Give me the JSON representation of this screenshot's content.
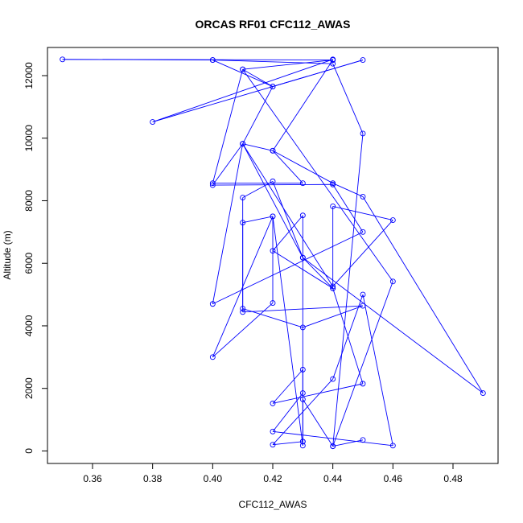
{
  "chart_data": {
    "type": "line",
    "title": "ORCAS RF01 CFC112_AWAS",
    "xlabel": "CFC112_AWAS",
    "ylabel": "Altitude (m)",
    "xlim": [
      0.345,
      0.495
    ],
    "ylim": [
      -400,
      12900
    ],
    "x_ticks": [
      0.36,
      0.38,
      0.4,
      0.42,
      0.44,
      0.46,
      0.48
    ],
    "x_tick_labels": [
      "0.36",
      "0.38",
      "0.40",
      "0.42",
      "0.44",
      "0.46",
      "0.48"
    ],
    "y_ticks": [
      0,
      2000,
      4000,
      6000,
      8000,
      10000,
      12000
    ],
    "y_tick_labels": [
      "0",
      "2000",
      "4000",
      "6000",
      "8000",
      "10000",
      "12000"
    ],
    "grid": false,
    "legend": "none",
    "line_color": "#0000ff",
    "marker": "open-circle",
    "series": [
      {
        "x": [
          0.45,
          0.44,
          0.43,
          0.43,
          0.42,
          0.44,
          0.45,
          0.46,
          0.42,
          0.43,
          0.43,
          0.42,
          0.45,
          0.44,
          0.42,
          0.43,
          0.43,
          0.43,
          0.42,
          0.4,
          0.42,
          0.42,
          0.41,
          0.41,
          0.43,
          0.45,
          0.41,
          0.41,
          0.42,
          0.43,
          0.41,
          0.4,
          0.44,
          0.45,
          0.4,
          0.41,
          0.44,
          0.46,
          0.44,
          0.44,
          0.43,
          0.49,
          0.45,
          0.44,
          0.42,
          0.43,
          0.4,
          0.41,
          0.46,
          0.44,
          0.45,
          0.44,
          0.4,
          0.42,
          0.45,
          0.38,
          0.44,
          0.44,
          0.41,
          0.42,
          0.41,
          0.42,
          0.44,
          0.35,
          0.4
        ],
        "y": [
          350,
          150,
          1650,
          300,
          200,
          2300,
          5000,
          170,
          620,
          1850,
          2600,
          1520,
          2150,
          5200,
          6400,
          7530,
          300,
          170,
          7500,
          3000,
          4730,
          7500,
          7300,
          4550,
          3950,
          4640,
          4440,
          8100,
          8620,
          6180,
          9820,
          8500,
          8520,
          7000,
          4700,
          9820,
          5260,
          7380,
          7820,
          5200,
          6180,
          1850,
          8130,
          8560,
          9600,
          8560,
          8560,
          12200,
          5420,
          150,
          10150,
          12380,
          12500,
          11650,
          12500,
          10520,
          12520,
          12500,
          12200,
          11650,
          9820,
          9600,
          12500,
          12520,
          12500
        ]
      }
    ]
  }
}
